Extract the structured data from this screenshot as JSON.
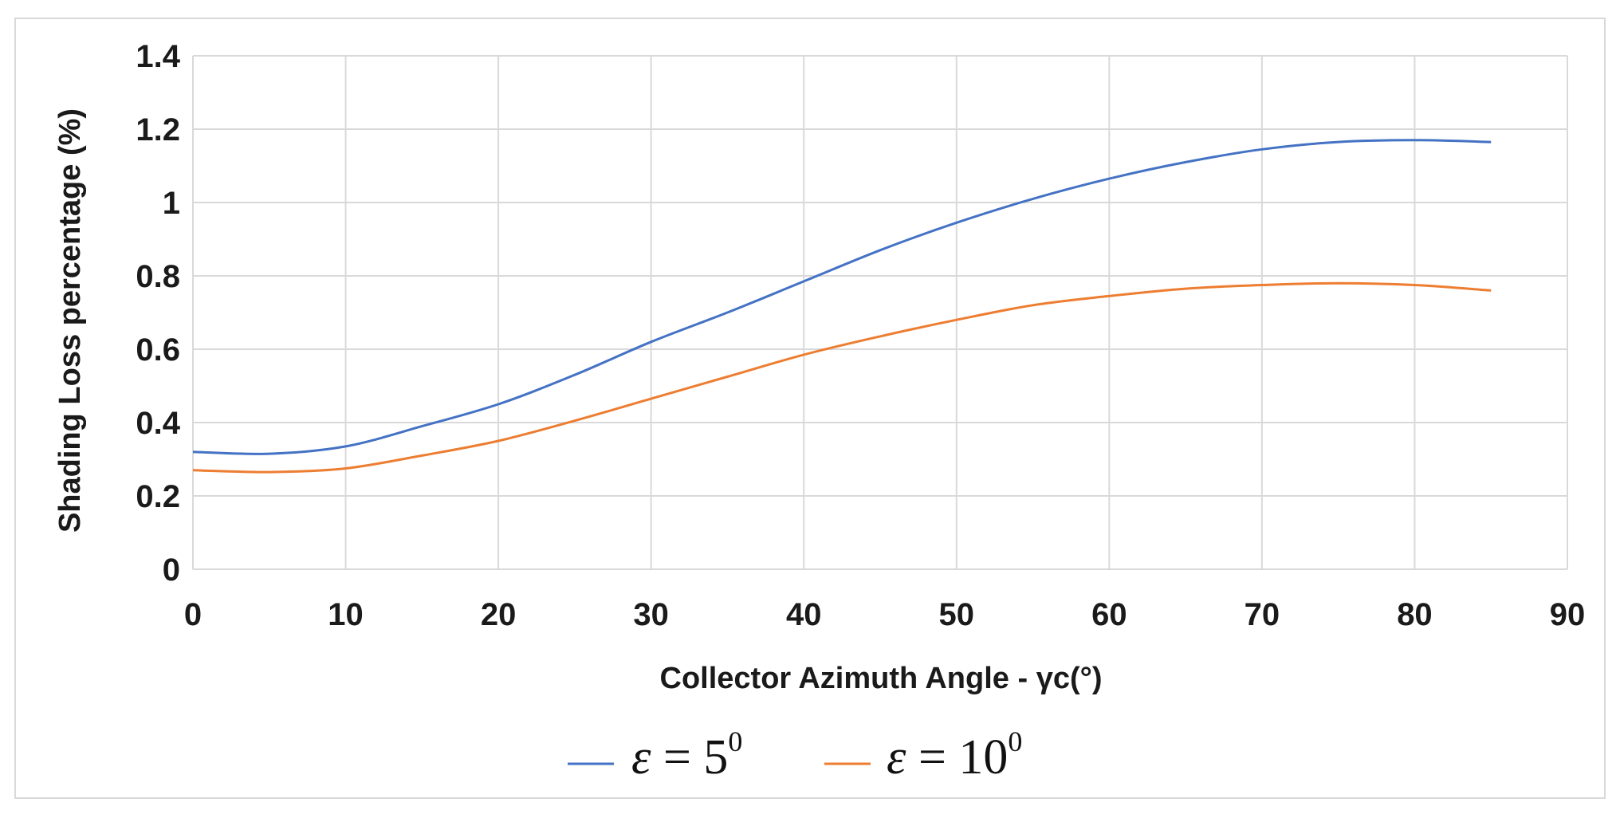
{
  "chart_data": {
    "type": "line",
    "title": "",
    "xlabel": "Collector Azimuth Angle - γc(°)",
    "ylabel": "Shading Loss percentage (%)",
    "xlim": [
      0,
      90
    ],
    "ylim": [
      0,
      1.4
    ],
    "x_ticks": [
      "0",
      "10",
      "20",
      "30",
      "40",
      "50",
      "60",
      "70",
      "80",
      "90"
    ],
    "y_ticks": [
      "0",
      "0.2",
      "0.4",
      "0.6",
      "0.8",
      "1",
      "1.2",
      "1.4"
    ],
    "grid": true,
    "legend_position": "bottom",
    "series": [
      {
        "name": "ε = 5⁰",
        "legend_symbol": "ε",
        "legend_eq": " = 5",
        "legend_sup": "0",
        "color": "#4472c4",
        "x": [
          0,
          5,
          10,
          15,
          20,
          25,
          30,
          35,
          40,
          45,
          50,
          55,
          60,
          65,
          70,
          75,
          80,
          85
        ],
        "y": [
          0.32,
          0.315,
          0.335,
          0.39,
          0.45,
          0.53,
          0.62,
          0.7,
          0.785,
          0.87,
          0.945,
          1.01,
          1.065,
          1.11,
          1.145,
          1.165,
          1.17,
          1.165
        ]
      },
      {
        "name": "ε = 10⁰",
        "legend_symbol": "ε",
        "legend_eq": " = 10",
        "legend_sup": "0",
        "color": "#ed7d31",
        "x": [
          0,
          5,
          10,
          15,
          20,
          25,
          30,
          35,
          40,
          45,
          50,
          55,
          60,
          65,
          70,
          75,
          80,
          85
        ],
        "y": [
          0.27,
          0.265,
          0.275,
          0.31,
          0.35,
          0.405,
          0.465,
          0.525,
          0.585,
          0.635,
          0.68,
          0.72,
          0.745,
          0.765,
          0.775,
          0.78,
          0.775,
          0.76
        ]
      }
    ]
  }
}
